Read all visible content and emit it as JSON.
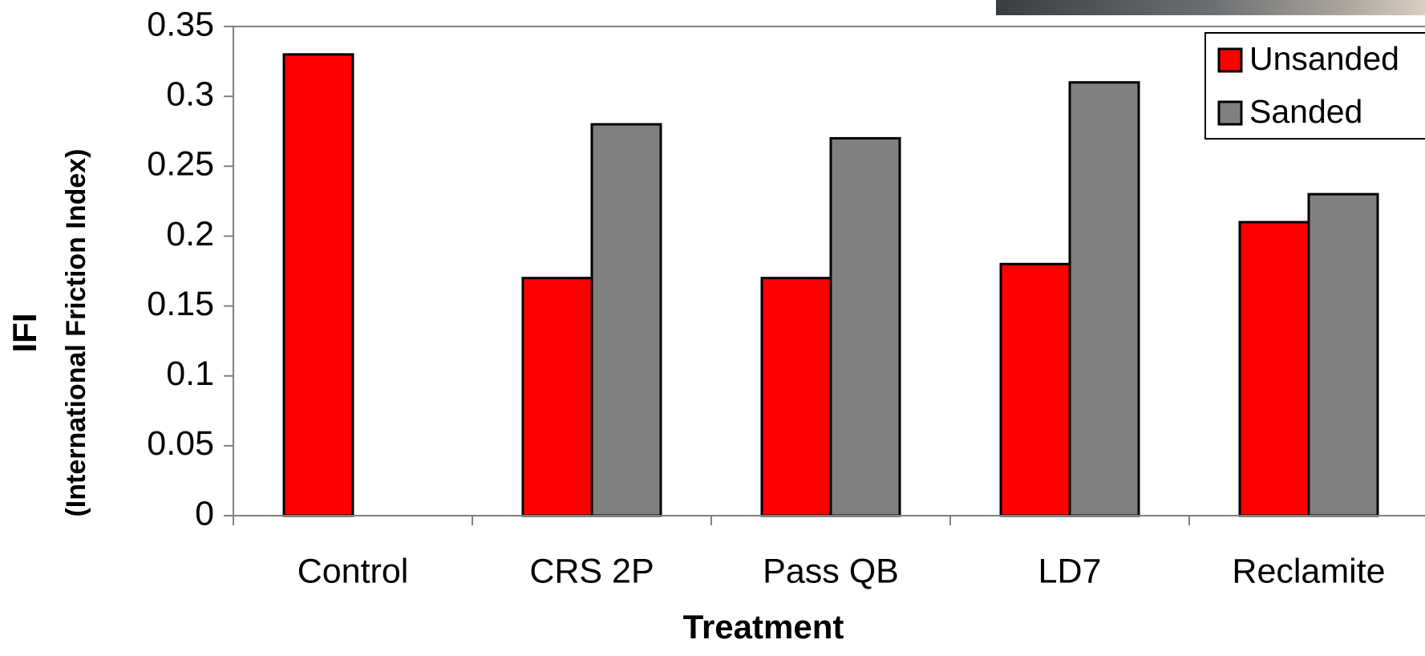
{
  "chart_data": {
    "type": "bar",
    "x_label": "Treatment",
    "y_label": "IFI",
    "y_label_subtitle": "(International Friction Index)",
    "categories": [
      "Control",
      "CRS 2P",
      "Pass QB",
      "LD7",
      "Reclamite"
    ],
    "series": [
      {
        "name": "Unsanded",
        "color": "#ff0000",
        "values": [
          0.33,
          0.17,
          0.17,
          0.18,
          0.21
        ]
      },
      {
        "name": "Sanded",
        "color": "#808080",
        "values": [
          null,
          0.28,
          0.27,
          0.31,
          0.23
        ]
      }
    ],
    "ylim": [
      0,
      0.35
    ],
    "yticks": [
      0,
      0.05,
      0.1,
      0.15,
      0.2,
      0.25,
      0.3,
      0.35
    ],
    "grid": false,
    "legend": "top-right"
  }
}
